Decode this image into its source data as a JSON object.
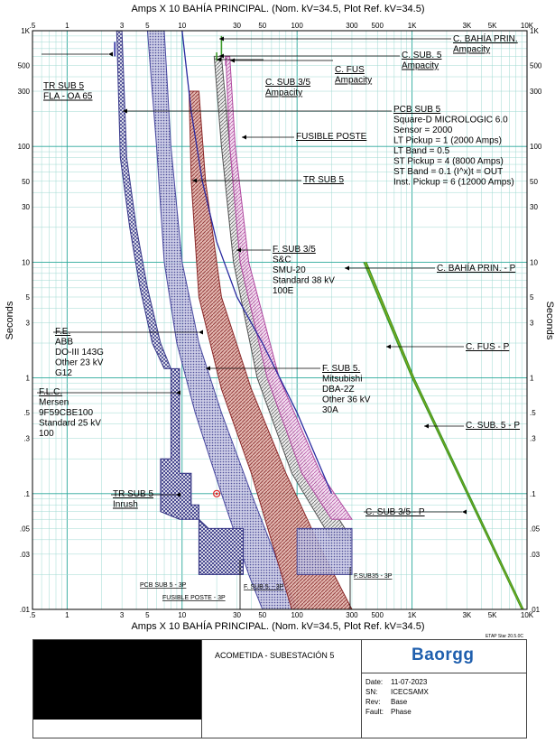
{
  "chart_data": {
    "type": "line",
    "title_top": "Amps  X  10   BAHÍA PRINCIPAL. (Nom. kV=34.5, Plot Ref. kV=34.5)",
    "title_bottom": "Amps  X  10   BAHÍA PRINCIPAL. (Nom. kV=34.5, Plot Ref. kV=34.5)",
    "ylabel": "Seconds",
    "x_scale": "log",
    "y_scale": "log",
    "xlim": [
      0.5,
      10000
    ],
    "ylim": [
      0.01,
      1000
    ],
    "grid": true,
    "x_ticks": [
      {
        "v": 0.5,
        "t": ".5"
      },
      {
        "v": 1,
        "t": "1"
      },
      {
        "v": 3,
        "t": "3"
      },
      {
        "v": 5,
        "t": "5"
      },
      {
        "v": 10,
        "t": "10"
      },
      {
        "v": 30,
        "t": "30"
      },
      {
        "v": 50,
        "t": "50"
      },
      {
        "v": 100,
        "t": "100"
      },
      {
        "v": 300,
        "t": "300"
      },
      {
        "v": 500,
        "t": "500"
      },
      {
        "v": 1000,
        "t": "1K"
      },
      {
        "v": 3000,
        "t": "3K"
      },
      {
        "v": 5000,
        "t": "5K"
      },
      {
        "v": 10000,
        "t": "10K"
      }
    ],
    "y_ticks": [
      {
        "v": 1000,
        "t": "1K"
      },
      {
        "v": 500,
        "t": "500"
      },
      {
        "v": 300,
        "t": "300"
      },
      {
        "v": 100,
        "t": "100"
      },
      {
        "v": 50,
        "t": "50"
      },
      {
        "v": 30,
        "t": "30"
      },
      {
        "v": 10,
        "t": "10"
      },
      {
        "v": 5,
        "t": "5"
      },
      {
        "v": 3,
        "t": "3"
      },
      {
        "v": 1,
        "t": "1"
      },
      {
        "v": 0.5,
        "t": ".5"
      },
      {
        "v": 0.3,
        "t": ".3"
      },
      {
        "v": 0.1,
        "t": ".1"
      },
      {
        "v": 0.05,
        "t": ".05"
      },
      {
        "v": 0.03,
        "t": ".03"
      },
      {
        "v": 0.01,
        "t": ".01"
      }
    ],
    "bands": [
      {
        "name": "F.L.C.",
        "color": "#3a3a8c",
        "hatch": "cross",
        "upper": [
          [
            3,
            1000
          ],
          [
            3.3,
            80
          ],
          [
            4,
            20
          ],
          [
            5,
            6
          ],
          [
            6.5,
            2
          ],
          [
            8,
            1.2
          ]
        ],
        "lower": [
          [
            2.7,
            1000
          ],
          [
            2.9,
            80
          ],
          [
            3.5,
            20
          ],
          [
            4.3,
            6
          ],
          [
            5.5,
            2
          ],
          [
            7,
            1.2
          ]
        ]
      },
      {
        "name": "F.E.",
        "color": "#4a4aa0",
        "hatch": "dots",
        "upper": [
          [
            7,
            1000
          ],
          [
            8,
            100
          ],
          [
            10,
            10
          ],
          [
            14,
            2
          ],
          [
            22,
            0.5
          ],
          [
            40,
            0.1
          ],
          [
            75,
            0.02
          ],
          [
            100,
            0.01
          ]
        ],
        "lower": [
          [
            5,
            1000
          ],
          [
            6,
            100
          ],
          [
            7,
            10
          ],
          [
            9,
            2
          ],
          [
            13,
            0.5
          ],
          [
            22,
            0.1
          ],
          [
            38,
            0.02
          ],
          [
            50,
            0.01
          ]
        ]
      },
      {
        "name": "F. SUB 5.",
        "color": "#8b2a2a",
        "hatch": "diag",
        "upper": [
          [
            14,
            300
          ],
          [
            16,
            50
          ],
          [
            22,
            5
          ],
          [
            40,
            0.8
          ],
          [
            80,
            0.15
          ],
          [
            170,
            0.03
          ],
          [
            300,
            0.01
          ]
        ],
        "lower": [
          [
            11.5,
            300
          ],
          [
            12,
            50
          ],
          [
            14,
            5
          ],
          [
            22,
            0.8
          ],
          [
            40,
            0.15
          ],
          [
            65,
            0.03
          ],
          [
            90,
            0.01
          ]
        ]
      },
      {
        "name": "F. SUB 3/5",
        "color": "#555555",
        "hatch": "diag",
        "upper": [
          [
            22,
            600
          ],
          [
            26,
            100
          ],
          [
            35,
            10
          ],
          [
            60,
            1
          ],
          [
            130,
            0.15
          ],
          [
            300,
            0.04
          ]
        ],
        "lower": [
          [
            19,
            600
          ],
          [
            22,
            100
          ],
          [
            28,
            10
          ],
          [
            45,
            1
          ],
          [
            90,
            0.15
          ],
          [
            200,
            0.04
          ]
        ]
      },
      {
        "name": "C. FUS",
        "color": "#b04aa0",
        "hatch": "diag",
        "upper": [
          [
            26,
            600
          ],
          [
            29,
            100
          ],
          [
            38,
            10
          ],
          [
            70,
            1
          ],
          [
            160,
            0.15
          ],
          [
            300,
            0.06
          ]
        ],
        "lower": [
          [
            24,
            600
          ],
          [
            26,
            100
          ],
          [
            32,
            10
          ],
          [
            55,
            1
          ],
          [
            110,
            0.15
          ],
          [
            200,
            0.06
          ]
        ]
      },
      {
        "name": "PCB SUB 5",
        "color": "#3a3a8c",
        "hatch": "dots",
        "upper": [
          [
            300,
            0.05
          ],
          [
            300,
            0.02
          ]
        ],
        "lower": [
          [
            100,
            0.05
          ],
          [
            100,
            0.02
          ]
        ]
      }
    ],
    "lines": [
      {
        "name": "TR SUB 5",
        "color": "#2a2aa0",
        "points": [
          [
            10,
            1000
          ],
          [
            12,
            200
          ],
          [
            15,
            50
          ],
          [
            20,
            15
          ],
          [
            30,
            5
          ],
          [
            50,
            2
          ],
          [
            100,
            0.5
          ],
          [
            200,
            0.1
          ]
        ]
      },
      {
        "name": "C. BAHÍA PRIN. - P",
        "color": "#3a9a2a",
        "points": [
          [
            380,
            10
          ],
          [
            1000,
            1
          ],
          [
            3000,
            0.1
          ],
          [
            9000,
            0.01
          ]
        ]
      },
      {
        "name": "C. FUS - P",
        "color": "#3a9a2a",
        "points": [
          [
            390,
            10
          ],
          [
            1020,
            1
          ],
          [
            3050,
            0.1
          ],
          [
            9100,
            0.01
          ]
        ]
      },
      {
        "name": "C. SUB. 5 - P",
        "color": "#c8b000",
        "points": [
          [
            395,
            10
          ],
          [
            1030,
            1
          ],
          [
            3080,
            0.1
          ],
          [
            9200,
            0.01
          ]
        ]
      },
      {
        "name": "C. SUB 3/5 - P",
        "color": "#3a9a2a",
        "points": [
          [
            400,
            10
          ],
          [
            1040,
            1
          ],
          [
            3100,
            0.1
          ],
          [
            9300,
            0.01
          ]
        ]
      }
    ],
    "inrush_point": {
      "x": 20,
      "y": 0.1
    },
    "annotations": [
      {
        "id": "tr_fla",
        "lines": [
          "TR SUB 5",
          "FLA - OA 65"
        ]
      },
      {
        "id": "c_bahia",
        "lines": [
          "C. BAHÍA PRIN.",
          "Ampacity"
        ]
      },
      {
        "id": "c_sub5",
        "lines": [
          "C. SUB. 5",
          "Ampacity"
        ]
      },
      {
        "id": "c_fus",
        "lines": [
          "C. FUS",
          "Ampacity"
        ]
      },
      {
        "id": "c_sub35",
        "lines": [
          "C. SUB 3/5",
          "Ampacity"
        ]
      },
      {
        "id": "pcb",
        "lines": [
          "PCB SUB 5",
          "Square-D  MICROLOGIC 6.0",
          "Sensor = 2000",
          "LT Pickup = 1 (2000 Amps)",
          "LT Band = 0.5",
          "ST Pickup = 4 (8000 Amps)",
          "ST Band = 0.1  (I^x)t = OUT",
          "Inst. Pickup = 6 (12000 Amps)"
        ]
      },
      {
        "id": "fusible",
        "lines": [
          "FUSIBLE POSTE"
        ]
      },
      {
        "id": "tr_sub5",
        "lines": [
          "TR SUB 5"
        ]
      },
      {
        "id": "fsub35",
        "lines": [
          "F. SUB 3/5",
          "S&C",
          "SMU-20",
          "Standard  38 kV",
          "100E"
        ]
      },
      {
        "id": "cbahia_p",
        "lines": [
          "C. BAHÍA PRIN. - P"
        ]
      },
      {
        "id": "fe",
        "lines": [
          "F.E.",
          "ABB",
          "DO-III 143G",
          "Other  23 kV",
          "G12"
        ]
      },
      {
        "id": "cfus_p",
        "lines": [
          "C. FUS - P"
        ]
      },
      {
        "id": "fsub5",
        "lines": [
          "F. SUB 5.",
          "Mitsubishi",
          "DBA-2Z",
          "Other  36 kV",
          "30A"
        ]
      },
      {
        "id": "flc",
        "lines": [
          "F.L.C.",
          "Mersen",
          "9F59CBE100",
          "Standard  25 kV",
          "100"
        ]
      },
      {
        "id": "csub5_p",
        "lines": [
          "C. SUB. 5 - P"
        ]
      },
      {
        "id": "inrush",
        "lines": [
          "TR SUB 5",
          "Inrush"
        ]
      },
      {
        "id": "csub35_p",
        "lines": [
          "C. SUB 3/5 - P"
        ]
      },
      {
        "id": "s_pcb",
        "lines": [
          "PCB SUB 5 - 3P"
        ]
      },
      {
        "id": "s_fsub5",
        "lines": [
          "F. SUB 5. - 3P"
        ]
      },
      {
        "id": "s_fusible",
        "lines": [
          "FUSIBLE POSTE - 3P"
        ]
      },
      {
        "id": "s_sub",
        "lines": [
          "F.SUB35 - 3P"
        ]
      }
    ]
  },
  "title_block": {
    "etap": "ETAP Star 20.5.0C",
    "drawing_title": "ACOMETIDA - SUBESTACIÓN 5",
    "logo": "Baorgg",
    "date_label": "Date:",
    "date_value": "11-07-2023",
    "sn_label": "SN:",
    "sn_value": "ICECSAMX",
    "rev_label": "Rev:",
    "rev_value": "Base",
    "fault_label": "Fault:",
    "fault_value": "Phase"
  }
}
